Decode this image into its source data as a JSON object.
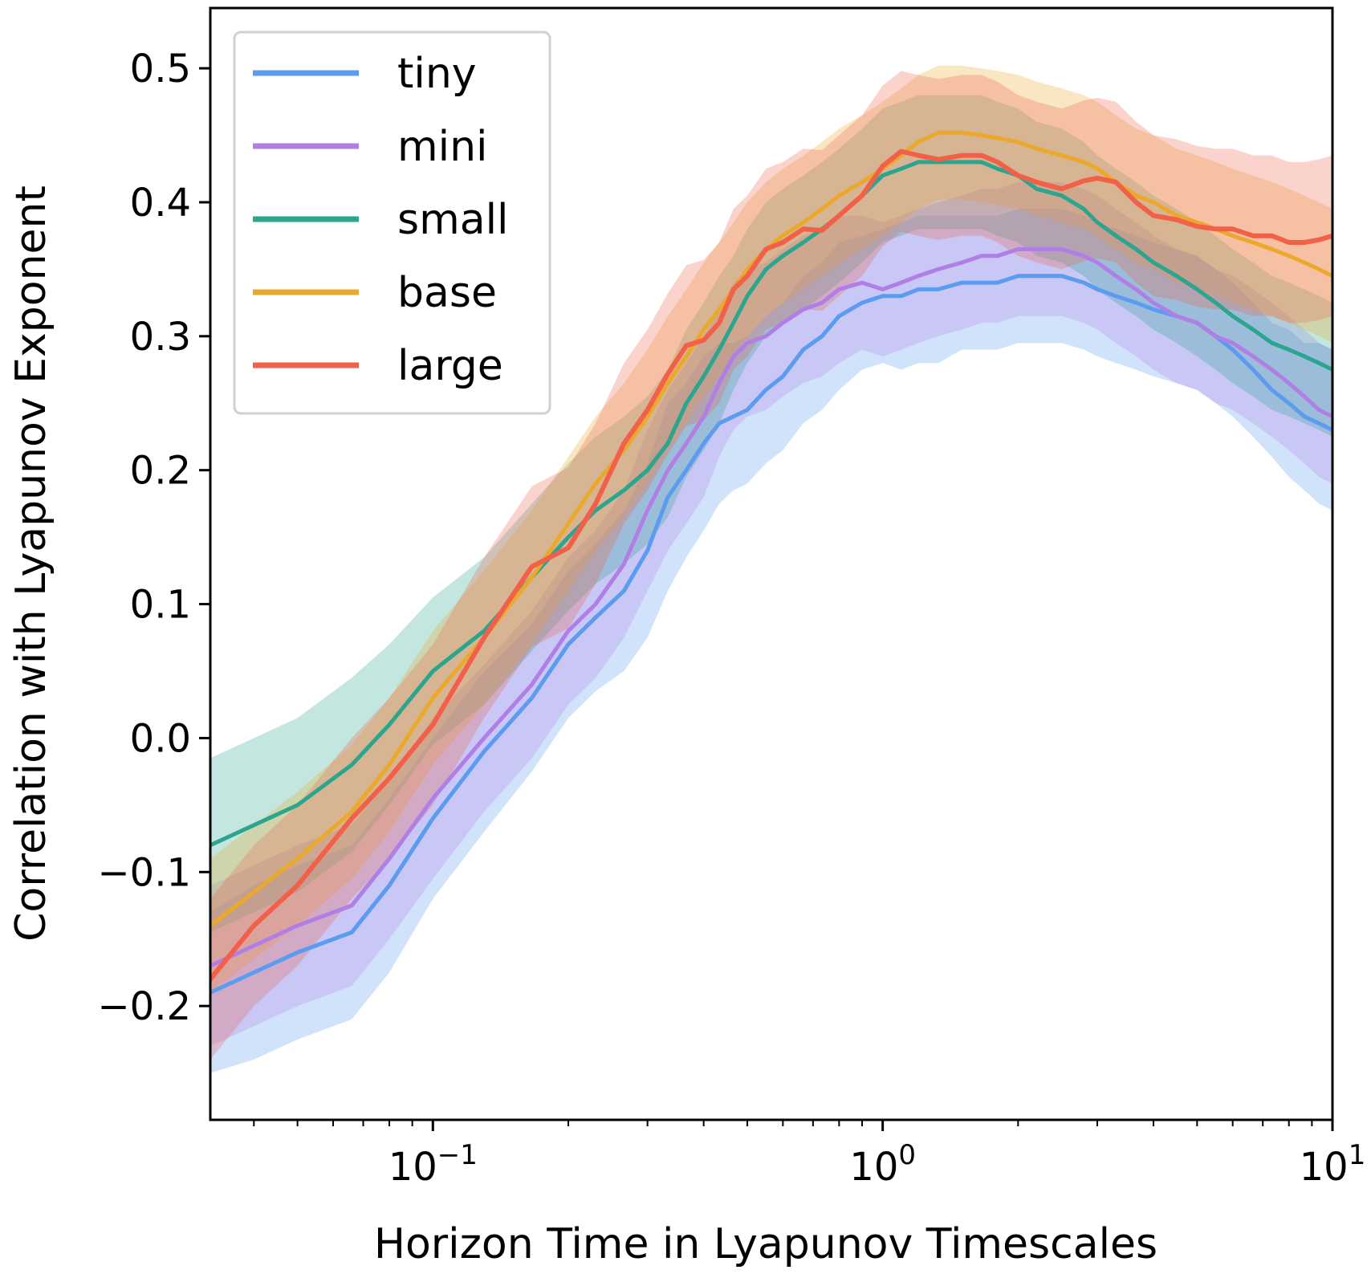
{
  "chart_data": {
    "type": "line",
    "xscale": "log",
    "xlim": [
      0.032,
      10
    ],
    "ylim": [
      -0.285,
      0.545
    ],
    "xlabel": "Horizon Time in Lyapunov Timescales",
    "ylabel": "Correlation with Lyapunov Exponent",
    "x_ticks": [
      {
        "value": 0.1,
        "base": "10",
        "exp": "−1"
      },
      {
        "value": 1,
        "base": "10",
        "exp": "0"
      },
      {
        "value": 10,
        "base": "10",
        "exp": "1"
      }
    ],
    "y_ticks": [
      {
        "value": -0.2,
        "label": "−0.2"
      },
      {
        "value": -0.1,
        "label": "−0.1"
      },
      {
        "value": 0.0,
        "label": "0.0"
      },
      {
        "value": 0.1,
        "label": "0.1"
      },
      {
        "value": 0.2,
        "label": "0.2"
      },
      {
        "value": 0.3,
        "label": "0.3"
      },
      {
        "value": 0.4,
        "label": "0.4"
      },
      {
        "value": 0.5,
        "label": "0.5"
      }
    ],
    "grid": false,
    "legend_position": "top-left",
    "x": [
      0.032,
      0.04,
      0.05,
      0.066,
      0.08,
      0.1,
      0.13,
      0.166,
      0.2,
      0.23,
      0.266,
      0.3,
      0.333,
      0.366,
      0.4,
      0.433,
      0.466,
      0.5,
      0.55,
      0.6,
      0.666,
      0.733,
      0.8,
      0.9,
      1.0,
      1.1,
      1.2,
      1.33,
      1.5,
      1.66,
      1.8,
      2.0,
      2.2,
      2.5,
      2.8,
      3.0,
      3.3,
      3.66,
      4.0,
      4.5,
      5.0,
      5.5,
      6.0,
      6.66,
      7.33,
      8.0,
      8.66,
      9.33,
      10.0
    ],
    "series": [
      {
        "name": "tiny",
        "color": "#5b9bf0",
        "values": [
          -0.19,
          -0.175,
          -0.16,
          -0.145,
          -0.11,
          -0.06,
          -0.01,
          0.03,
          0.07,
          0.09,
          0.11,
          0.14,
          0.18,
          0.2,
          0.22,
          0.235,
          0.24,
          0.245,
          0.26,
          0.27,
          0.29,
          0.3,
          0.315,
          0.325,
          0.33,
          0.33,
          0.335,
          0.335,
          0.34,
          0.34,
          0.34,
          0.345,
          0.345,
          0.345,
          0.34,
          0.335,
          0.33,
          0.325,
          0.32,
          0.315,
          0.31,
          0.3,
          0.29,
          0.275,
          0.26,
          0.25,
          0.24,
          0.235,
          0.23
        ],
        "band": [
          0.06,
          0.065,
          0.065,
          0.065,
          0.065,
          0.06,
          0.06,
          0.055,
          0.055,
          0.055,
          0.06,
          0.065,
          0.07,
          0.065,
          0.065,
          0.06,
          0.055,
          0.055,
          0.055,
          0.055,
          0.055,
          0.055,
          0.055,
          0.05,
          0.05,
          0.055,
          0.055,
          0.055,
          0.05,
          0.05,
          0.05,
          0.05,
          0.05,
          0.05,
          0.05,
          0.05,
          0.05,
          0.05,
          0.05,
          0.05,
          0.05,
          0.05,
          0.05,
          0.05,
          0.05,
          0.055,
          0.055,
          0.06,
          0.06
        ]
      },
      {
        "name": "mini",
        "color": "#b07fe6",
        "values": [
          -0.17,
          -0.155,
          -0.14,
          -0.125,
          -0.09,
          -0.045,
          0.0,
          0.04,
          0.08,
          0.1,
          0.13,
          0.17,
          0.2,
          0.22,
          0.24,
          0.265,
          0.285,
          0.295,
          0.3,
          0.31,
          0.32,
          0.325,
          0.335,
          0.34,
          0.335,
          0.34,
          0.345,
          0.35,
          0.355,
          0.36,
          0.36,
          0.365,
          0.365,
          0.365,
          0.36,
          0.355,
          0.345,
          0.335,
          0.325,
          0.315,
          0.31,
          0.3,
          0.295,
          0.285,
          0.275,
          0.265,
          0.255,
          0.245,
          0.24
        ],
        "band": [
          0.06,
          0.06,
          0.06,
          0.06,
          0.06,
          0.06,
          0.055,
          0.055,
          0.055,
          0.055,
          0.055,
          0.06,
          0.06,
          0.06,
          0.06,
          0.055,
          0.055,
          0.055,
          0.055,
          0.055,
          0.055,
          0.055,
          0.055,
          0.05,
          0.05,
          0.05,
          0.05,
          0.05,
          0.05,
          0.05,
          0.05,
          0.05,
          0.05,
          0.05,
          0.05,
          0.05,
          0.05,
          0.05,
          0.05,
          0.05,
          0.05,
          0.05,
          0.05,
          0.05,
          0.05,
          0.05,
          0.05,
          0.05,
          0.05
        ]
      },
      {
        "name": "small",
        "color": "#2ba58e",
        "values": [
          -0.08,
          -0.065,
          -0.05,
          -0.02,
          0.01,
          0.05,
          0.08,
          0.12,
          0.15,
          0.17,
          0.185,
          0.2,
          0.22,
          0.25,
          0.27,
          0.29,
          0.31,
          0.33,
          0.35,
          0.36,
          0.37,
          0.38,
          0.39,
          0.405,
          0.42,
          0.425,
          0.43,
          0.43,
          0.43,
          0.43,
          0.425,
          0.42,
          0.41,
          0.405,
          0.395,
          0.385,
          0.375,
          0.365,
          0.355,
          0.345,
          0.335,
          0.325,
          0.315,
          0.305,
          0.295,
          0.29,
          0.285,
          0.28,
          0.275
        ],
        "band": [
          0.065,
          0.065,
          0.065,
          0.065,
          0.06,
          0.055,
          0.055,
          0.055,
          0.055,
          0.055,
          0.055,
          0.055,
          0.055,
          0.055,
          0.055,
          0.055,
          0.05,
          0.05,
          0.05,
          0.05,
          0.05,
          0.05,
          0.05,
          0.05,
          0.05,
          0.05,
          0.05,
          0.05,
          0.05,
          0.05,
          0.05,
          0.05,
          0.05,
          0.05,
          0.05,
          0.05,
          0.05,
          0.05,
          0.05,
          0.05,
          0.05,
          0.05,
          0.05,
          0.05,
          0.05,
          0.05,
          0.05,
          0.05,
          0.05
        ]
      },
      {
        "name": "base",
        "color": "#eba92b",
        "values": [
          -0.14,
          -0.115,
          -0.09,
          -0.055,
          -0.02,
          0.03,
          0.075,
          0.12,
          0.16,
          0.19,
          0.215,
          0.24,
          0.265,
          0.285,
          0.305,
          0.32,
          0.335,
          0.35,
          0.365,
          0.375,
          0.385,
          0.395,
          0.405,
          0.415,
          0.425,
          0.435,
          0.445,
          0.452,
          0.452,
          0.45,
          0.448,
          0.445,
          0.44,
          0.435,
          0.43,
          0.425,
          0.415,
          0.405,
          0.4,
          0.39,
          0.385,
          0.38,
          0.375,
          0.37,
          0.365,
          0.36,
          0.355,
          0.35,
          0.345
        ],
        "band": [
          0.05,
          0.05,
          0.05,
          0.05,
          0.05,
          0.05,
          0.05,
          0.05,
          0.05,
          0.05,
          0.05,
          0.05,
          0.05,
          0.05,
          0.05,
          0.05,
          0.05,
          0.05,
          0.05,
          0.05,
          0.05,
          0.05,
          0.05,
          0.05,
          0.05,
          0.05,
          0.05,
          0.05,
          0.05,
          0.05,
          0.05,
          0.05,
          0.05,
          0.05,
          0.05,
          0.05,
          0.05,
          0.05,
          0.05,
          0.05,
          0.05,
          0.05,
          0.05,
          0.05,
          0.05,
          0.05,
          0.05,
          0.05,
          0.05
        ]
      },
      {
        "name": "large",
        "color": "#f2604a",
        "values": [
          -0.18,
          -0.14,
          -0.11,
          -0.06,
          -0.03,
          0.01,
          0.075,
          0.128,
          0.142,
          0.175,
          0.22,
          0.245,
          0.272,
          0.293,
          0.297,
          0.31,
          0.335,
          0.345,
          0.365,
          0.37,
          0.38,
          0.379,
          0.39,
          0.405,
          0.427,
          0.438,
          0.435,
          0.432,
          0.435,
          0.435,
          0.43,
          0.42,
          0.415,
          0.41,
          0.416,
          0.418,
          0.415,
          0.4,
          0.39,
          0.387,
          0.382,
          0.38,
          0.38,
          0.375,
          0.375,
          0.37,
          0.37,
          0.372,
          0.375
        ],
        "band": [
          0.06,
          0.06,
          0.06,
          0.06,
          0.06,
          0.06,
          0.06,
          0.06,
          0.06,
          0.06,
          0.06,
          0.06,
          0.06,
          0.06,
          0.06,
          0.06,
          0.06,
          0.06,
          0.06,
          0.06,
          0.06,
          0.06,
          0.06,
          0.06,
          0.06,
          0.06,
          0.06,
          0.06,
          0.06,
          0.06,
          0.06,
          0.06,
          0.06,
          0.06,
          0.06,
          0.06,
          0.06,
          0.06,
          0.06,
          0.06,
          0.06,
          0.06,
          0.06,
          0.06,
          0.06,
          0.06,
          0.06,
          0.06,
          0.06
        ]
      }
    ]
  }
}
